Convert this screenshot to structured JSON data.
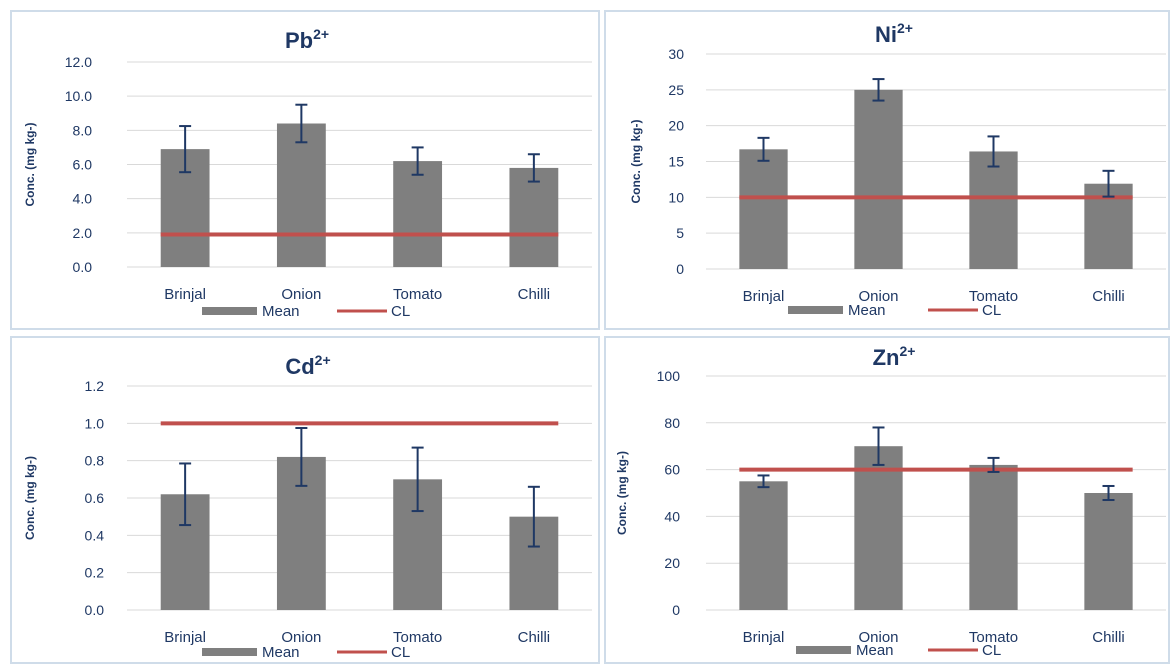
{
  "chart_data": [
    {
      "type": "bar",
      "title": "Pb",
      "title_superscript": "2+",
      "ylabel": "Conc. (mg kg-)",
      "xlabel": "",
      "categories": [
        "Brinjal",
        "Onion",
        "Tomato",
        "Chilli"
      ],
      "ylim": [
        0.0,
        12.0
      ],
      "yticks": [
        "0.0",
        "2.0",
        "4.0",
        "6.0",
        "8.0",
        "10.0",
        "12.0"
      ],
      "series": [
        {
          "name": "Mean",
          "values": [
            6.9,
            8.4,
            6.2,
            5.8
          ],
          "error": [
            1.35,
            1.1,
            0.8,
            0.8
          ]
        },
        {
          "name": "CL",
          "values": [
            1.9,
            1.9,
            1.9,
            1.9
          ]
        }
      ],
      "grid": true,
      "legend_position": "bottom"
    },
    {
      "type": "bar",
      "title": "Ni",
      "title_superscript": "2+",
      "ylabel": "Conc. (mg kg-)",
      "xlabel": "",
      "categories": [
        "Brinjal",
        "Onion",
        "Tomato",
        "Chilli"
      ],
      "ylim": [
        0,
        30
      ],
      "yticks": [
        "0",
        "5",
        "10",
        "15",
        "20",
        "25",
        "30"
      ],
      "series": [
        {
          "name": "Mean",
          "values": [
            16.7,
            25.0,
            16.4,
            11.9
          ],
          "error": [
            1.6,
            1.5,
            2.1,
            1.8
          ]
        },
        {
          "name": "CL",
          "values": [
            10,
            10,
            10,
            10
          ]
        }
      ],
      "grid": true,
      "legend_position": "bottom"
    },
    {
      "type": "bar",
      "title": "Cd",
      "title_superscript": "2+",
      "ylabel": "Conc. (mg kg-)",
      "xlabel": "",
      "categories": [
        "Brinjal",
        "Onion",
        "Tomato",
        "Chilli"
      ],
      "ylim": [
        0.0,
        1.2
      ],
      "yticks": [
        "0.0",
        "0.2",
        "0.4",
        "0.6",
        "0.8",
        "1.0",
        "1.2"
      ],
      "series": [
        {
          "name": "Mean",
          "values": [
            0.62,
            0.82,
            0.7,
            0.5
          ],
          "error": [
            0.165,
            0.155,
            0.17,
            0.16
          ]
        },
        {
          "name": "CL",
          "values": [
            1.0,
            1.0,
            1.0,
            1.0
          ]
        }
      ],
      "grid": true,
      "legend_position": "bottom"
    },
    {
      "type": "bar",
      "title": "Zn",
      "title_superscript": "2+",
      "ylabel": "Conc. (mg kg-)",
      "xlabel": "",
      "categories": [
        "Brinjal",
        "Onion",
        "Tomato",
        "Chilli"
      ],
      "ylim": [
        0,
        100
      ],
      "yticks": [
        "0",
        "20",
        "40",
        "60",
        "80",
        "100"
      ],
      "series": [
        {
          "name": "Mean",
          "values": [
            55,
            70,
            62,
            50
          ],
          "error": [
            2.5,
            8,
            3,
            3
          ]
        },
        {
          "name": "CL",
          "values": [
            60,
            60,
            60,
            60
          ]
        }
      ],
      "grid": true,
      "legend_position": "bottom"
    }
  ],
  "colors": {
    "bar": "#7f7f7f",
    "cl_line": "#c0504d",
    "error_bar": "#1f3864",
    "text": "#1f3864",
    "grid": "#d9d9d9",
    "panel_border": "#cfdce9"
  }
}
